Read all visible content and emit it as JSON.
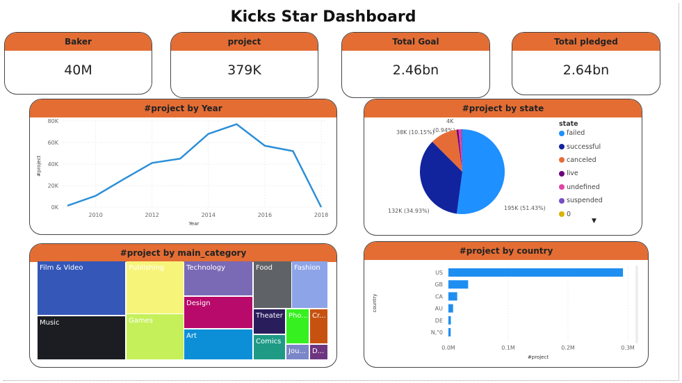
{
  "title": "Kicks Star Dashboard",
  "kpis": [
    {
      "label": "Baker",
      "value": "40M"
    },
    {
      "label": "project",
      "value": "379K"
    },
    {
      "label": "Total Goal",
      "value": "2.46bn"
    },
    {
      "label": "Total pledged",
      "value": "2.64bn"
    }
  ],
  "colors": {
    "header": "#e46d34",
    "line": "#2b8fd8",
    "bar": "#1f8ef1"
  },
  "line_chart": {
    "title": "#project by Year",
    "chart_data": {
      "type": "line",
      "x": [
        2009,
        2010,
        2011,
        2012,
        2013,
        2014,
        2015,
        2016,
        2017,
        2018
      ],
      "values": [
        1300,
        10500,
        26000,
        41000,
        45000,
        68000,
        77000,
        57000,
        52000,
        0
      ],
      "xlabel": "Year",
      "ylabel": "#project",
      "ylim": [
        0,
        80000
      ],
      "yticks": [
        "0K",
        "20K",
        "40K",
        "60K",
        "80K"
      ],
      "xticks": [
        "2010",
        "2012",
        "2014",
        "2016",
        "2018"
      ],
      "grid": true
    }
  },
  "pie_chart": {
    "title": "#project by state",
    "legend_title": "state",
    "chart_data": {
      "type": "pie",
      "categories": [
        "failed",
        "successful",
        "canceled",
        "live",
        "undefined",
        "suspended",
        "0"
      ],
      "values": [
        51.43,
        34.93,
        10.15,
        0.74,
        0.94,
        0.49,
        0.01
      ],
      "colors": [
        "#1e90ff",
        "#12239e",
        "#e66c37",
        "#6b007b",
        "#e044a7",
        "#744ec2",
        "#d9b300"
      ],
      "labels": [
        "195K (51.43%)",
        "132K (34.93%)",
        "38K (10.15%)",
        "4K",
        "(0.94%)"
      ],
      "legend": "right"
    }
  },
  "treemap": {
    "title": "#project by main_category",
    "items": [
      "Film & Video",
      "Music",
      "Publishing",
      "Games",
      "Technology",
      "Design",
      "Art",
      "Food",
      "Fashion",
      "Theater",
      "Comics",
      "Pho...",
      "Cr...",
      "Jou...",
      "D..."
    ],
    "colors": [
      "#3457b8",
      "#1b1d22",
      "#f6f57a",
      "#c5f05a",
      "#7a69b5",
      "#b80a6a",
      "#0d8fd8",
      "#5f6368",
      "#8ea4e8",
      "#2a1d5c",
      "#1e9a85",
      "#37f020",
      "#c75210",
      "#7a86c8",
      "#6d3580"
    ]
  },
  "bar_chart": {
    "title": "#project by country",
    "chart_data": {
      "type": "bar",
      "orientation": "horizontal",
      "categories": [
        "US",
        "GB",
        "CA",
        "AU",
        "DE",
        "N,\"0"
      ],
      "values": [
        292000,
        33000,
        14700,
        7800,
        4100,
        3800
      ],
      "xlabel": "#project",
      "ylabel": "country",
      "xlim": [
        0,
        300000
      ],
      "xticks": [
        "0.0M",
        "0.1M",
        "0.2M",
        "0.3M"
      ]
    }
  }
}
